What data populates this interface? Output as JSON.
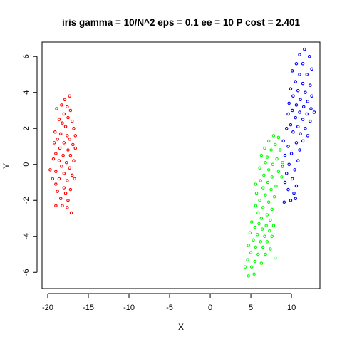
{
  "chart_data": {
    "type": "scatter",
    "title": "iris gamma = 10/N^2 eps = 0.1 ee = 10 P cost = 2.401",
    "xlabel": "X",
    "ylabel": "Y",
    "xlim": [
      -20.7,
      13.5
    ],
    "ylim": [
      -6.9,
      6.8
    ],
    "x_ticks": [
      -20,
      -15,
      -10,
      -5,
      0,
      5,
      10
    ],
    "x_tick_labels": [
      "-20",
      "-15",
      "-10",
      "-5",
      "0",
      "5",
      "10"
    ],
    "y_ticks": [
      -6,
      -4,
      -2,
      0,
      2,
      4,
      6
    ],
    "y_tick_labels": [
      "-6",
      "-4",
      "-2",
      "0",
      "2",
      "4",
      "6"
    ],
    "grid": false,
    "legend": "none",
    "marker": "open-circle",
    "series": [
      {
        "color": "#ff0000",
        "points": [
          [
            -17.3,
            3.8
          ],
          [
            -17.9,
            3.6
          ],
          [
            -18.3,
            3.3
          ],
          [
            -17.6,
            3.2
          ],
          [
            -18.9,
            3.1
          ],
          [
            -17.2,
            3.0
          ],
          [
            -18.0,
            2.8
          ],
          [
            -17.5,
            2.6
          ],
          [
            -18.6,
            2.5
          ],
          [
            -17.0,
            2.4
          ],
          [
            -18.2,
            2.3
          ],
          [
            -17.8,
            2.1
          ],
          [
            -16.8,
            2.0
          ],
          [
            -19.1,
            1.8
          ],
          [
            -18.4,
            1.7
          ],
          [
            -17.6,
            1.6
          ],
          [
            -16.6,
            1.6
          ],
          [
            -18.8,
            1.4
          ],
          [
            -17.3,
            1.4
          ],
          [
            -19.2,
            1.2
          ],
          [
            -18.0,
            1.2
          ],
          [
            -16.9,
            1.1
          ],
          [
            -18.5,
            0.9
          ],
          [
            -17.5,
            0.8
          ],
          [
            -16.6,
            0.9
          ],
          [
            -19.0,
            0.6
          ],
          [
            -18.1,
            0.5
          ],
          [
            -17.2,
            0.5
          ],
          [
            -19.3,
            0.3
          ],
          [
            -18.6,
            0.2
          ],
          [
            -17.7,
            0.1
          ],
          [
            -16.8,
            0.2
          ],
          [
            -19.7,
            -0.3
          ],
          [
            -18.3,
            -0.1
          ],
          [
            -17.3,
            -0.2
          ],
          [
            -19.0,
            -0.4
          ],
          [
            -18.0,
            -0.5
          ],
          [
            -17.0,
            -0.6
          ],
          [
            -19.4,
            -0.8
          ],
          [
            -18.6,
            -0.8
          ],
          [
            -17.6,
            -0.9
          ],
          [
            -16.7,
            -0.8
          ],
          [
            -19.0,
            -1.1
          ],
          [
            -18.0,
            -1.3
          ],
          [
            -17.2,
            -1.4
          ],
          [
            -18.8,
            -1.5
          ],
          [
            -17.8,
            -1.6
          ],
          [
            -18.4,
            -1.9
          ],
          [
            -17.5,
            -2.0
          ],
          [
            -19.0,
            -2.3
          ],
          [
            -18.2,
            -2.3
          ],
          [
            -17.6,
            -2.4
          ],
          [
            -17.1,
            -2.7
          ]
        ]
      },
      {
        "color": "#00ff00",
        "points": [
          [
            7.8,
            1.6
          ],
          [
            8.4,
            1.5
          ],
          [
            7.2,
            1.3
          ],
          [
            8.0,
            1.1
          ],
          [
            6.7,
            0.9
          ],
          [
            7.5,
            0.8
          ],
          [
            8.6,
            0.8
          ],
          [
            6.3,
            0.5
          ],
          [
            7.0,
            0.4
          ],
          [
            8.2,
            0.3
          ],
          [
            6.8,
            0.1
          ],
          [
            7.7,
            0.0
          ],
          [
            8.9,
            0.1
          ],
          [
            6.1,
            -0.2
          ],
          [
            7.2,
            -0.3
          ],
          [
            8.4,
            -0.4
          ],
          [
            6.6,
            -0.6
          ],
          [
            7.6,
            -0.7
          ],
          [
            8.8,
            -0.7
          ],
          [
            6.2,
            -0.9
          ],
          [
            7.1,
            -1.0
          ],
          [
            8.1,
            -1.2
          ],
          [
            5.6,
            -1.1
          ],
          [
            6.5,
            -1.3
          ],
          [
            7.5,
            -1.4
          ],
          [
            5.7,
            -1.6
          ],
          [
            6.8,
            -1.7
          ],
          [
            7.9,
            -1.8
          ],
          [
            6.1,
            -2.0
          ],
          [
            7.2,
            -2.1
          ],
          [
            5.6,
            -2.3
          ],
          [
            6.5,
            -2.4
          ],
          [
            7.6,
            -2.5
          ],
          [
            5.9,
            -2.7
          ],
          [
            7.0,
            -2.8
          ],
          [
            6.3,
            -3.0
          ],
          [
            7.4,
            -3.1
          ],
          [
            5.1,
            -3.2
          ],
          [
            6.0,
            -3.3
          ],
          [
            6.9,
            -3.4
          ],
          [
            7.8,
            -3.4
          ],
          [
            5.5,
            -3.5
          ],
          [
            6.4,
            -3.6
          ],
          [
            7.3,
            -3.7
          ],
          [
            4.9,
            -3.8
          ],
          [
            5.8,
            -3.9
          ],
          [
            6.7,
            -4.0
          ],
          [
            7.6,
            -4.0
          ],
          [
            5.3,
            -4.2
          ],
          [
            6.2,
            -4.3
          ],
          [
            7.0,
            -4.3
          ],
          [
            4.7,
            -4.5
          ],
          [
            5.6,
            -4.6
          ],
          [
            6.5,
            -4.6
          ],
          [
            7.4,
            -4.7
          ],
          [
            5.0,
            -4.9
          ],
          [
            5.9,
            -5.0
          ],
          [
            6.8,
            -5.0
          ],
          [
            4.6,
            -5.3
          ],
          [
            5.5,
            -5.4
          ],
          [
            6.3,
            -5.5
          ],
          [
            4.3,
            -5.7
          ],
          [
            5.1,
            -5.7
          ],
          [
            4.7,
            -6.2
          ],
          [
            5.4,
            -6.1
          ],
          [
            8.0,
            -5.2
          ]
        ]
      },
      {
        "color": "#0000ff",
        "points": [
          [
            11.6,
            6.4
          ],
          [
            11.0,
            6.1
          ],
          [
            12.2,
            6.0
          ],
          [
            10.6,
            5.6
          ],
          [
            11.4,
            5.6
          ],
          [
            12.5,
            5.3
          ],
          [
            10.1,
            5.2
          ],
          [
            11.0,
            5.0
          ],
          [
            11.9,
            5.0
          ],
          [
            10.5,
            4.6
          ],
          [
            11.4,
            4.5
          ],
          [
            12.3,
            4.4
          ],
          [
            9.9,
            4.2
          ],
          [
            10.8,
            4.1
          ],
          [
            11.7,
            4.0
          ],
          [
            12.5,
            3.8
          ],
          [
            10.2,
            3.8
          ],
          [
            11.1,
            3.6
          ],
          [
            12.0,
            3.5
          ],
          [
            9.7,
            3.4
          ],
          [
            10.6,
            3.3
          ],
          [
            11.5,
            3.2
          ],
          [
            12.4,
            3.1
          ],
          [
            10.1,
            3.0
          ],
          [
            11.0,
            2.9
          ],
          [
            11.9,
            2.8
          ],
          [
            9.6,
            2.8
          ],
          [
            12.8,
            2.9
          ],
          [
            10.5,
            2.6
          ],
          [
            11.4,
            2.5
          ],
          [
            12.3,
            2.4
          ],
          [
            9.9,
            2.2
          ],
          [
            10.8,
            2.1
          ],
          [
            11.7,
            2.0
          ],
          [
            9.4,
            2.0
          ],
          [
            10.2,
            1.8
          ],
          [
            11.1,
            1.7
          ],
          [
            12.0,
            1.6
          ],
          [
            9.0,
            1.3
          ],
          [
            11.4,
            1.3
          ],
          [
            10.6,
            1.2
          ],
          [
            9.6,
            1.0
          ],
          [
            11.0,
            0.8
          ],
          [
            10.0,
            0.6
          ],
          [
            9.2,
            0.5
          ],
          [
            10.8,
            0.2
          ],
          [
            9.7,
            0.0
          ],
          [
            8.9,
            -0.1
          ],
          [
            10.4,
            -0.3
          ],
          [
            9.4,
            -0.5
          ],
          [
            10.1,
            -0.8
          ],
          [
            9.2,
            -1.0
          ],
          [
            10.6,
            -1.2
          ],
          [
            9.6,
            -1.4
          ],
          [
            10.3,
            -1.6
          ],
          [
            9.9,
            -2.0
          ],
          [
            9.1,
            -2.1
          ],
          [
            10.5,
            -1.9
          ]
        ]
      }
    ]
  }
}
